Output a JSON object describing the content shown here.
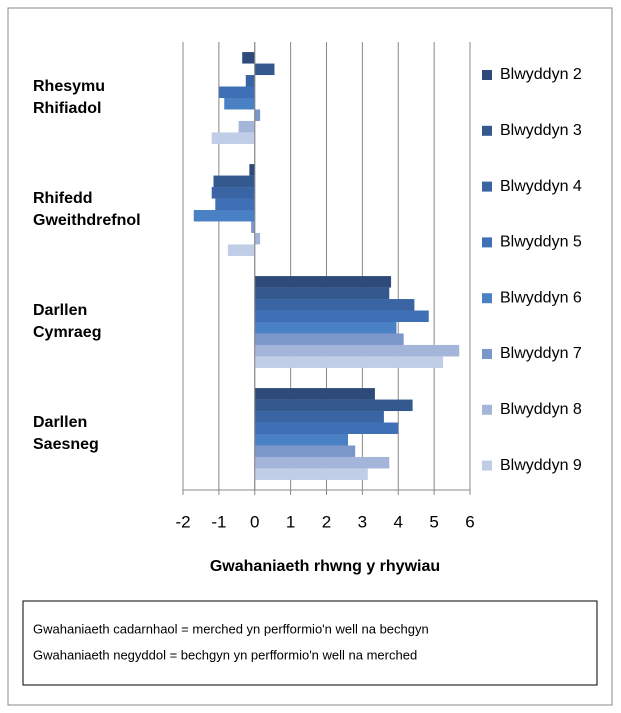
{
  "chart_data": {
    "type": "bar",
    "orientation": "horizontal",
    "categories": [
      "Rhesymu Rhifiadol",
      "Rhifedd Gweithdrefnol",
      "Darllen Cymraeg",
      "Darllen Saesneg"
    ],
    "series": [
      {
        "name": "Blwyddyn 2",
        "color": "#2e4a7a",
        "values": [
          -0.35,
          -0.15,
          3.8,
          3.35
        ]
      },
      {
        "name": "Blwyddyn 3",
        "color": "#34598f",
        "values": [
          0.55,
          -1.15,
          3.75,
          4.4
        ]
      },
      {
        "name": "Blwyddyn 4",
        "color": "#3a64a4",
        "values": [
          -0.25,
          -1.2,
          4.45,
          3.6
        ]
      },
      {
        "name": "Blwyddyn 5",
        "color": "#3f6fb5",
        "values": [
          -1.0,
          -1.1,
          4.85,
          4.0
        ]
      },
      {
        "name": "Blwyddyn 6",
        "color": "#4a80c4",
        "values": [
          -0.85,
          -1.7,
          3.95,
          2.6
        ]
      },
      {
        "name": "Blwyddyn 7",
        "color": "#7b96c8",
        "values": [
          0.15,
          -0.1,
          4.15,
          2.8
        ]
      },
      {
        "name": "Blwyddyn 8",
        "color": "#a3b6da",
        "values": [
          -0.45,
          0.15,
          5.7,
          3.75
        ]
      },
      {
        "name": "Blwyddyn 9",
        "color": "#c0cde6",
        "values": [
          -1.2,
          -0.75,
          5.25,
          3.15
        ]
      }
    ],
    "xlim": [
      -2,
      6
    ],
    "xticks": [
      -2,
      -1,
      0,
      1,
      2,
      3,
      4,
      5,
      6
    ],
    "xlabel": "Gwahaniaeth rhwng y rhywiau",
    "grid": true,
    "legend": "right",
    "notes": [
      "Gwahaniaeth cadarnhaol = merched yn perfformio'n well na bechgyn",
      "Gwahaniaeth negyddol = bechgyn yn perfformio'n well na merched"
    ]
  }
}
